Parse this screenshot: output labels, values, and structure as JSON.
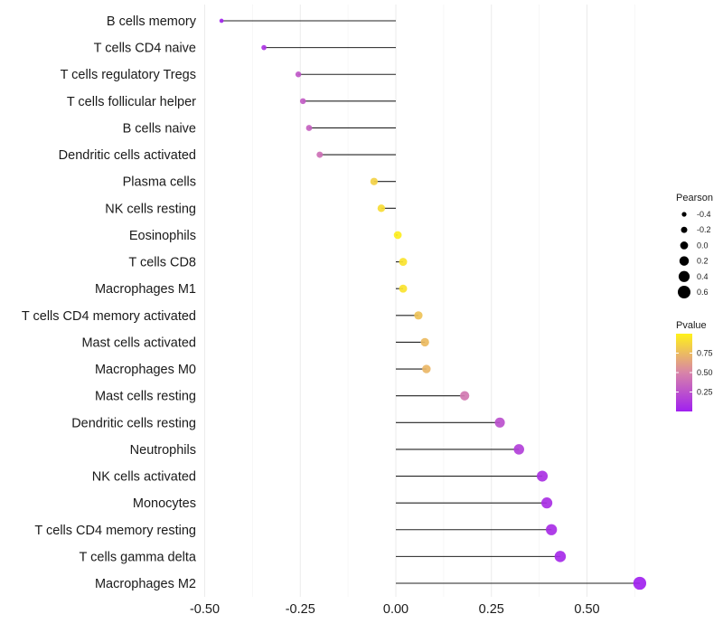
{
  "chart_data": {
    "type": "lollipop",
    "title": "",
    "xlabel": "",
    "ylabel": "",
    "xlim": [
      -0.52,
      0.68
    ],
    "x_ticks": [
      -0.5,
      -0.25,
      0.0,
      0.25,
      0.5
    ],
    "x_tick_labels": [
      "-0.50",
      "-0.25",
      "0.00",
      "0.25",
      "0.50"
    ],
    "grid": true,
    "categories": [
      "B cells memory",
      "T cells CD4 naive",
      "T cells regulatory  Tregs ",
      "T cells follicular helper",
      "B cells naive",
      "Dendritic cells activated",
      "Plasma cells",
      "NK cells resting",
      "Eosinophils",
      "T cells CD8",
      "Macrophages M1",
      "T cells CD4 memory activated",
      "Mast cells activated",
      "Macrophages M0",
      "Mast cells resting",
      "Dendritic cells resting",
      "Neutrophils",
      "NK cells activated",
      "Monocytes",
      "T cells CD4 memory resting",
      "T cells gamma delta",
      "Macrophages M2"
    ],
    "pearson": [
      -0.456,
      -0.345,
      -0.255,
      -0.243,
      -0.227,
      -0.199,
      -0.057,
      -0.038,
      0.005,
      0.019,
      0.019,
      0.059,
      0.076,
      0.08,
      0.18,
      0.272,
      0.322,
      0.383,
      0.395,
      0.407,
      0.43,
      0.638
    ],
    "pvalue": [
      0.02,
      0.1,
      0.28,
      0.3,
      0.33,
      0.4,
      0.85,
      0.9,
      0.98,
      0.93,
      0.93,
      0.78,
      0.75,
      0.73,
      0.44,
      0.24,
      0.16,
      0.09,
      0.08,
      0.07,
      0.05,
      0.01
    ],
    "legend": {
      "size_title": "Pearson",
      "size_values": [
        -0.4,
        -0.2,
        0.0,
        0.2,
        0.4,
        0.6
      ],
      "size_labels": [
        "-0.4",
        "-0.2",
        "0.0",
        "0.2",
        "0.4",
        "0.6"
      ],
      "color_title": "Pvalue",
      "color_ticks": [
        0.75,
        0.5,
        0.25
      ],
      "color_labels": [
        "0.75",
        "0.50",
        "0.25"
      ],
      "color_range": [
        0.0,
        1.0
      ],
      "placement": "right"
    },
    "colors": {
      "low": "#A020F0",
      "mid": "#D884A8",
      "high": "#FFF21A"
    }
  }
}
